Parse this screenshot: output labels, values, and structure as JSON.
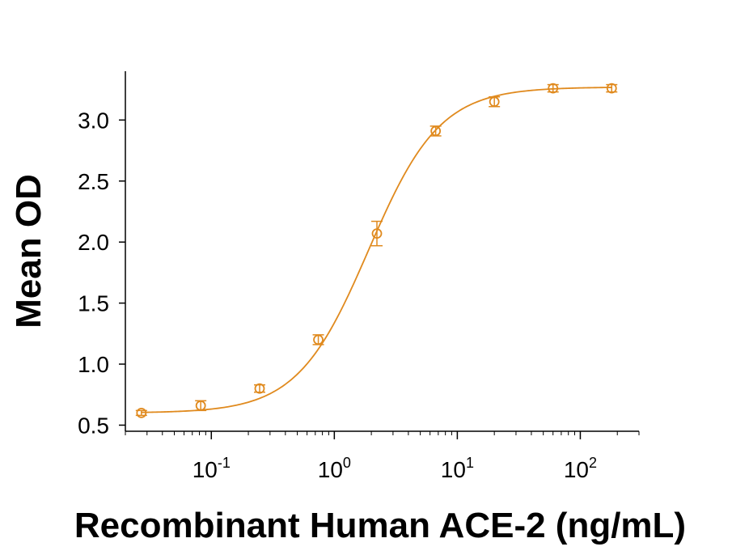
{
  "chart_data": {
    "type": "scatter",
    "xlabel": "Recombinant Human ACE-2 (ng/mL)",
    "ylabel": "Mean OD",
    "x_scale": "log",
    "xlim": [
      0.02,
      300
    ],
    "ylim": [
      0.45,
      3.4
    ],
    "x_ticks": [
      {
        "value": 0.1,
        "base": "10",
        "exp": "-1"
      },
      {
        "value": 1,
        "base": "10",
        "exp": "0"
      },
      {
        "value": 10,
        "base": "10",
        "exp": "1"
      },
      {
        "value": 100,
        "base": "10",
        "exp": "2"
      }
    ],
    "y_ticks": [
      {
        "value": 0.5,
        "label": "0.5"
      },
      {
        "value": 1.0,
        "label": "1.0"
      },
      {
        "value": 1.5,
        "label": "1.5"
      },
      {
        "value": 2.0,
        "label": "2.0"
      },
      {
        "value": 2.5,
        "label": "2.5"
      },
      {
        "value": 3.0,
        "label": "3.0"
      }
    ],
    "grid": false,
    "color": "#E08A1E",
    "points": [
      {
        "x": 0.027,
        "y": 0.6,
        "err": 0.02
      },
      {
        "x": 0.082,
        "y": 0.66,
        "err": 0.04
      },
      {
        "x": 0.247,
        "y": 0.8,
        "err": 0.03
      },
      {
        "x": 0.741,
        "y": 1.2,
        "err": 0.04
      },
      {
        "x": 2.22,
        "y": 2.07,
        "err": 0.1
      },
      {
        "x": 6.67,
        "y": 2.91,
        "err": 0.04
      },
      {
        "x": 20,
        "y": 3.15,
        "err": 0.04
      },
      {
        "x": 60,
        "y": 3.26,
        "err": 0.03
      },
      {
        "x": 180,
        "y": 3.26,
        "err": 0.03
      }
    ],
    "fit": {
      "model": "4PL",
      "bottom": 0.6,
      "top": 3.27,
      "ec50": 1.9,
      "hill": 1.5
    }
  }
}
